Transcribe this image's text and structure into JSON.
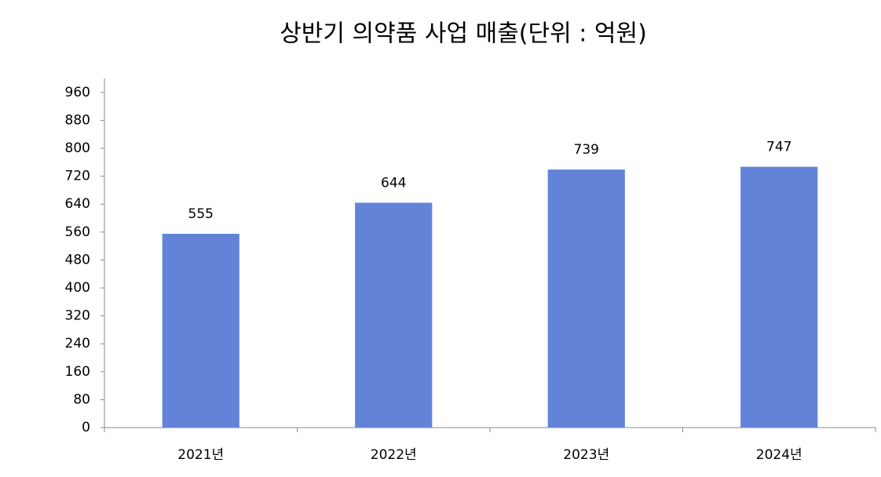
{
  "chart_data": {
    "type": "bar",
    "title": "상반기 의약품 사업 매출(단위 : 억원)",
    "categories": [
      "2021년",
      "2022년",
      "2023년",
      "2024년"
    ],
    "values": [
      555,
      644,
      739,
      747
    ],
    "color": "#6383d9",
    "ylim": [
      0,
      1000
    ],
    "yticks": [
      0,
      80,
      160,
      240,
      320,
      400,
      480,
      560,
      640,
      720,
      800,
      880,
      960
    ],
    "grid": false
  }
}
